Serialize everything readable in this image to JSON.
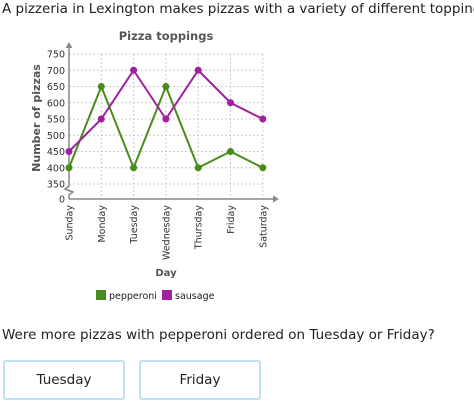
{
  "prompt": "A pizzeria in Lexington makes pizzas with a variety of different toppings.",
  "question": "Were more pizzas with pepperoni ordered on Tuesday or Friday?",
  "choices": [
    "Tuesday",
    "Friday"
  ],
  "colors": {
    "pepperoni": "#4a8c1c",
    "sausage": "#a020a0",
    "grid": "#cccccc",
    "axis": "#888888",
    "choice_border": "#bfe3f3"
  },
  "chart_data": {
    "type": "line",
    "title": "Pizza toppings",
    "xlabel": "Day",
    "ylabel": "Number of pizzas",
    "categories": [
      "Sunday",
      "Monday",
      "Tuesday",
      "Wednesday",
      "Thursday",
      "Friday",
      "Saturday"
    ],
    "y_ticks": [
      0,
      350,
      400,
      450,
      500,
      550,
      600,
      650,
      700,
      750
    ],
    "ylim": [
      350,
      750
    ],
    "axis_break": true,
    "grid": true,
    "legend_position": "bottom",
    "series": [
      {
        "name": "pepperoni",
        "values": [
          400,
          650,
          400,
          650,
          400,
          450,
          400
        ]
      },
      {
        "name": "sausage",
        "values": [
          450,
          550,
          700,
          550,
          700,
          600,
          550
        ]
      }
    ]
  }
}
